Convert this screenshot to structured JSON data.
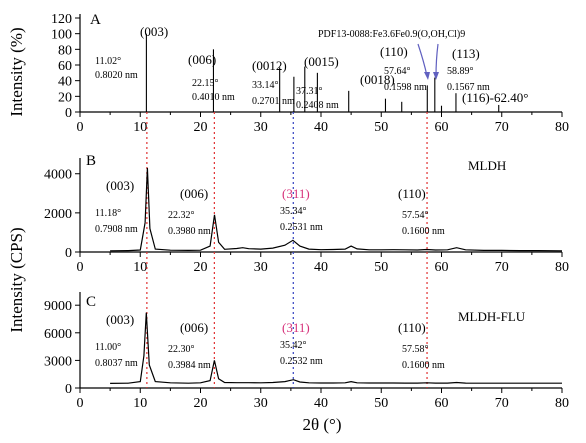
{
  "chart_data": [
    {
      "type": "bar",
      "panel": "A",
      "title": "",
      "ylabel": "Intensity (%)",
      "xlabel": "",
      "xlim": [
        0,
        80
      ],
      "ylim": [
        0,
        120
      ],
      "yticks": [
        "0",
        "20",
        "40",
        "60",
        "80",
        "100",
        "120"
      ],
      "xticks": [
        "0",
        "10",
        "20",
        "30",
        "40",
        "50",
        "60",
        "70",
        "80"
      ],
      "reference": "PDF13-0088:Fe3.6Fe0.9(O,OH,Cl)9",
      "x": [
        11.02,
        22.15,
        33.14,
        35.5,
        37.31,
        39.4,
        44.6,
        50.7,
        53.4,
        57.64,
        58.89,
        60.0,
        62.4,
        69.5
      ],
      "values": [
        100,
        80,
        57,
        45,
        58,
        50,
        27,
        17,
        13,
        34,
        44,
        8,
        24,
        9
      ],
      "labels": [
        {
          "hkl": "(003)",
          "angle": "11.02°",
          "d": "0.8020 nm"
        },
        {
          "hkl": "(006)",
          "angle": "22.15°",
          "d": "0.4010 nm"
        },
        {
          "hkl": "(0012)",
          "angle": "33.14°",
          "d": "0.2701 nm"
        },
        {
          "hkl": "(0015)",
          "angle": "37.31°",
          "d": "0.2408 nm"
        },
        {
          "hkl": "(0018)",
          "angle": "",
          "d": ""
        },
        {
          "hkl": "(110)",
          "angle": "57.64°",
          "d": "0.1598 nm"
        },
        {
          "hkl": "(113)",
          "angle": "58.89°",
          "d": "0.1567 nm"
        },
        {
          "hkl": "(116)-62.40°",
          "angle": "",
          "d": ""
        }
      ]
    },
    {
      "type": "line",
      "panel": "B",
      "series": [
        {
          "name": "MLDH"
        }
      ],
      "xlim": [
        0,
        80
      ],
      "ylim": [
        0,
        4500
      ],
      "yticks": [
        "0",
        "2000",
        "4000"
      ],
      "xticks": [
        "0",
        "10",
        "20",
        "30",
        "40",
        "50",
        "60",
        "70",
        "80"
      ],
      "x": [
        5,
        8,
        10,
        10.8,
        11.18,
        11.6,
        12.5,
        15,
        18,
        20,
        21.6,
        22.32,
        23,
        24,
        26,
        27,
        28,
        30,
        32,
        34,
        35.34,
        36.5,
        38,
        40,
        42,
        44,
        45,
        46,
        48,
        50,
        52,
        54,
        56,
        57.54,
        59,
        61,
        62.5,
        64,
        67,
        70,
        73,
        76,
        80
      ],
      "y": [
        60,
        70,
        100,
        1500,
        4300,
        1200,
        150,
        90,
        80,
        90,
        300,
        1900,
        500,
        140,
        180,
        220,
        170,
        150,
        200,
        350,
        600,
        300,
        150,
        120,
        130,
        150,
        300,
        160,
        110,
        110,
        120,
        110,
        100,
        130,
        100,
        110,
        220,
        110,
        80,
        80,
        70,
        70,
        60
      ],
      "labels": [
        {
          "hkl": "(003)",
          "angle": "11.18°",
          "d": "0.7908 nm"
        },
        {
          "hkl": "(006)",
          "angle": "22.32°",
          "d": "0.3980 nm"
        },
        {
          "hkl": "(311)",
          "angle": "35.34°",
          "d": "0.2531 nm"
        },
        {
          "hkl": "(110)",
          "angle": "57.54°",
          "d": "0.1600 nm"
        }
      ]
    },
    {
      "type": "line",
      "panel": "C",
      "series": [
        {
          "name": "MLDH-FLU"
        }
      ],
      "xlabel": "2θ (°)",
      "ylabel": "Intensity (CPS)",
      "xlim": [
        0,
        80
      ],
      "ylim": [
        0,
        10000
      ],
      "yticks": [
        "0",
        "3000",
        "6000",
        "9000"
      ],
      "xticks": [
        "0",
        "10",
        "20",
        "30",
        "40",
        "50",
        "60",
        "70",
        "80"
      ],
      "x": [
        5,
        8,
        10,
        10.6,
        11.0,
        11.5,
        12.5,
        15,
        18,
        20,
        21.6,
        22.3,
        23,
        24,
        26,
        28,
        30,
        32,
        34,
        35.42,
        36.5,
        38,
        40,
        42,
        44,
        45,
        46,
        48,
        50,
        52,
        54,
        56,
        57.58,
        59,
        61,
        62.5,
        64,
        67,
        70,
        73,
        76,
        80
      ],
      "y": [
        500,
        520,
        700,
        3500,
        8200,
        2500,
        700,
        560,
        520,
        560,
        800,
        3000,
        1000,
        600,
        580,
        580,
        560,
        600,
        700,
        900,
        650,
        560,
        540,
        540,
        560,
        700,
        570,
        540,
        540,
        540,
        530,
        530,
        560,
        530,
        530,
        600,
        530,
        520,
        520,
        520,
        520,
        520
      ],
      "labels": [
        {
          "hkl": "(003)",
          "angle": "11.00°",
          "d": "0.8037 nm"
        },
        {
          "hkl": "(006)",
          "angle": "22.30°",
          "d": "0.3984 nm"
        },
        {
          "hkl": "(311)",
          "angle": "35.42°",
          "d": "0.2532 nm"
        },
        {
          "hkl": "(110)",
          "angle": "57.58°",
          "d": "0.1600 nm"
        }
      ]
    }
  ],
  "panels": {
    "A": {
      "letter": "A"
    },
    "B": {
      "letter": "B",
      "legend": "MLDH"
    },
    "C": {
      "letter": "C",
      "legend": "MLDH-FLU"
    }
  },
  "colors": {
    "dashed_red": "#e03030",
    "dashed_blue": "#3040c0",
    "pink": "#d6307a",
    "arrow": "#6060c0"
  }
}
